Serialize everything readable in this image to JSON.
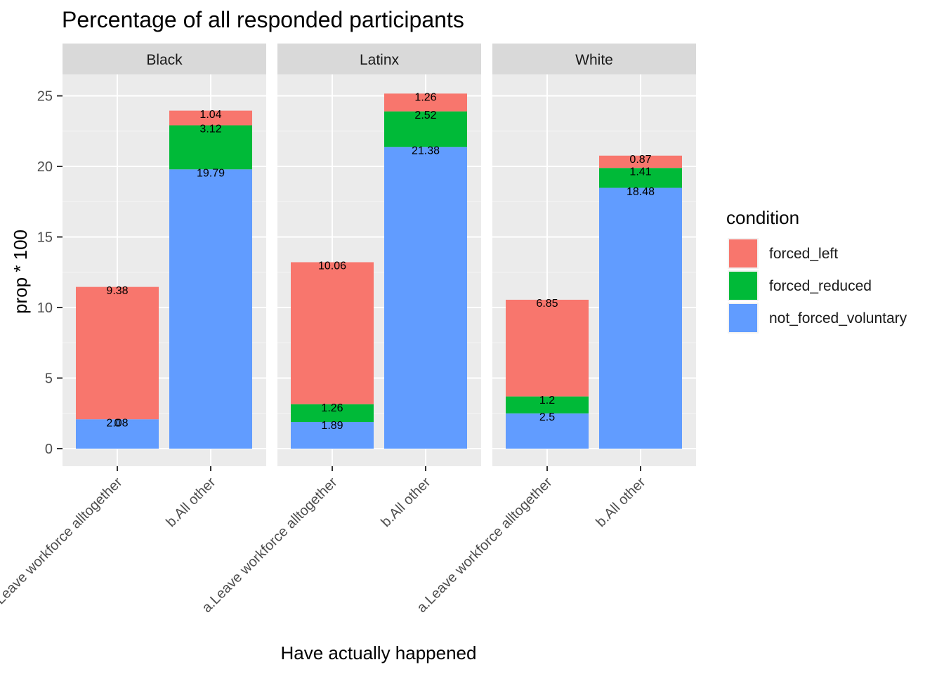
{
  "chart_data": {
    "type": "bar",
    "stacked": true,
    "faceted": true,
    "title": "Percentage of all responded participants",
    "xlabel": "Have actually happened",
    "ylabel": "prop * 100",
    "ylim": [
      0,
      27
    ],
    "yticks": [
      0,
      5,
      10,
      15,
      20,
      25
    ],
    "grid": true,
    "legend_position": "right",
    "legend_title": "condition",
    "categories": [
      "a.Leave workforce alltogether",
      "b.All other"
    ],
    "series": [
      {
        "name": "forced_left",
        "color": "#F8766D"
      },
      {
        "name": "forced_reduced",
        "color": "#00BA38"
      },
      {
        "name": "not_forced_voluntary",
        "color": "#619CFF"
      }
    ],
    "stack_order_bottom_to_top": [
      "not_forced_voluntary",
      "forced_reduced",
      "forced_left"
    ],
    "facets": [
      {
        "name": "Black",
        "bars": [
          {
            "category": "a.Leave workforce alltogether",
            "not_forced_voluntary": 2.08,
            "forced_reduced": 0,
            "forced_left": 9.38,
            "labels": {
              "not_forced_voluntary": "2.08",
              "forced_reduced": "0",
              "forced_left": "9.38"
            }
          },
          {
            "category": "b.All other",
            "not_forced_voluntary": 19.79,
            "forced_reduced": 3.12,
            "forced_left": 1.04,
            "labels": {
              "not_forced_voluntary": "19.79",
              "forced_reduced": "3.12",
              "forced_left": "1.04"
            }
          }
        ]
      },
      {
        "name": "Latinx",
        "bars": [
          {
            "category": "a.Leave workforce alltogether",
            "not_forced_voluntary": 1.89,
            "forced_reduced": 1.26,
            "forced_left": 10.06,
            "labels": {
              "not_forced_voluntary": "1.89",
              "forced_reduced": "1.26",
              "forced_left": "10.06"
            }
          },
          {
            "category": "b.All other",
            "not_forced_voluntary": 21.38,
            "forced_reduced": 2.52,
            "forced_left": 1.26,
            "labels": {
              "not_forced_voluntary": "21.38",
              "forced_reduced": "2.52",
              "forced_left": "1.26"
            }
          }
        ]
      },
      {
        "name": "White",
        "bars": [
          {
            "category": "a.Leave workforce alltogether",
            "not_forced_voluntary": 2.5,
            "forced_reduced": 1.2,
            "forced_left": 6.85,
            "labels": {
              "not_forced_voluntary": "2.5",
              "forced_reduced": "1.2",
              "forced_left": "6.85"
            }
          },
          {
            "category": "b.All other",
            "not_forced_voluntary": 18.48,
            "forced_reduced": 1.41,
            "forced_left": 0.87,
            "labels": {
              "not_forced_voluntary": "18.48",
              "forced_reduced": "1.41",
              "forced_left": "0.87"
            }
          }
        ]
      }
    ]
  }
}
